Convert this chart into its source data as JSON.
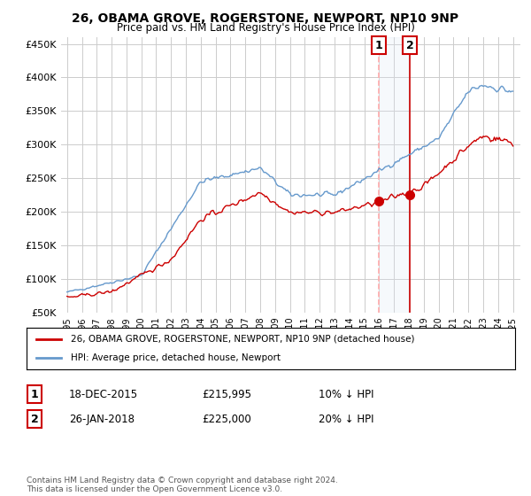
{
  "title": "26, OBAMA GROVE, ROGERSTONE, NEWPORT, NP10 9NP",
  "subtitle": "Price paid vs. HM Land Registry's House Price Index (HPI)",
  "ylim": [
    50000,
    460000
  ],
  "yticks": [
    50000,
    100000,
    150000,
    200000,
    250000,
    300000,
    350000,
    400000,
    450000
  ],
  "sale1_date_num": 2015.96,
  "sale1_price": 215995,
  "sale2_date_num": 2018.07,
  "sale2_price": 225000,
  "legend_line1": "26, OBAMA GROVE, ROGERSTONE, NEWPORT, NP10 9NP (detached house)",
  "legend_line2": "HPI: Average price, detached house, Newport",
  "annotation1_label": "1",
  "annotation1_date": "18-DEC-2015",
  "annotation1_price": "£215,995",
  "annotation1_pct": "10% ↓ HPI",
  "annotation2_label": "2",
  "annotation2_date": "26-JAN-2018",
  "annotation2_price": "£225,000",
  "annotation2_pct": "20% ↓ HPI",
  "footnote": "Contains HM Land Registry data © Crown copyright and database right 2024.\nThis data is licensed under the Open Government Licence v3.0.",
  "hpi_color": "#6699cc",
  "price_color": "#cc0000",
  "sale_marker_color": "#cc0000",
  "vline1_color": "#ffaaaa",
  "vline2_color": "#cc0000",
  "vshade_color": "#dde8f5",
  "box_color": "#cc0000",
  "bg_color": "#ffffff",
  "grid_color": "#cccccc"
}
